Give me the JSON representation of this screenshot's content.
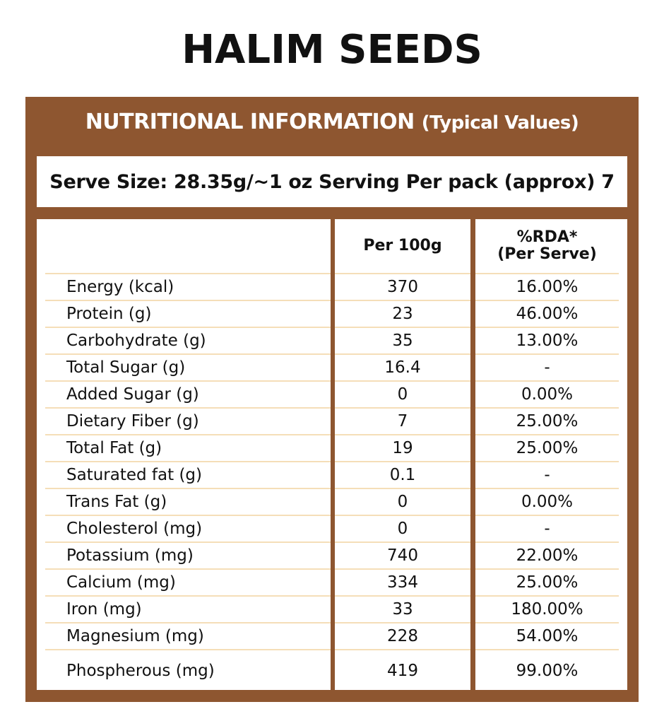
{
  "title": "HALIM SEEDS",
  "panel": {
    "heading_main": "NUTRITIONAL INFORMATION",
    "heading_sub": "(Typical Values)",
    "serve_info": "Serve Size: 28.35g/~1 oz Serving Per pack (approx) 7"
  },
  "colors": {
    "frame": "#8E5630",
    "divider": "#F5DEB8",
    "text": "#111111"
  },
  "table": {
    "headers": [
      "",
      "Per 100g",
      "%RDA*\n(Per Serve)"
    ],
    "header_rda_line1": "%RDA*",
    "header_rda_line2": "(Per Serve)",
    "rows": [
      {
        "nutrient": "Energy (kcal)",
        "per100g": "370",
        "rda": "16.00%"
      },
      {
        "nutrient": "Protein (g)",
        "per100g": "23",
        "rda": "46.00%"
      },
      {
        "nutrient": "Carbohydrate (g)",
        "per100g": "35",
        "rda": "13.00%"
      },
      {
        "nutrient": "Total Sugar (g)",
        "per100g": "16.4",
        "rda": "-"
      },
      {
        "nutrient": "Added Sugar (g)",
        "per100g": "0",
        "rda": "0.00%"
      },
      {
        "nutrient": "Dietary Fiber (g)",
        "per100g": "7",
        "rda": "25.00%"
      },
      {
        "nutrient": "Total Fat (g)",
        "per100g": "19",
        "rda": "25.00%"
      },
      {
        "nutrient": "Saturated fat (g)",
        "per100g": "0.1",
        "rda": "-"
      },
      {
        "nutrient": "Trans Fat (g)",
        "per100g": "0",
        "rda": "0.00%"
      },
      {
        "nutrient": "Cholesterol (mg)",
        "per100g": "0",
        "rda": "-"
      },
      {
        "nutrient": "Potassium (mg)",
        "per100g": "740",
        "rda": "22.00%"
      },
      {
        "nutrient": "Calcium (mg)",
        "per100g": "334",
        "rda": "25.00%"
      },
      {
        "nutrient": "Iron (mg)",
        "per100g": "33",
        "rda": "180.00%"
      },
      {
        "nutrient": "Magnesium (mg)",
        "per100g": "228",
        "rda": "54.00%"
      },
      {
        "nutrient": "Phospherous (mg)",
        "per100g": "419",
        "rda": "99.00%"
      }
    ]
  }
}
